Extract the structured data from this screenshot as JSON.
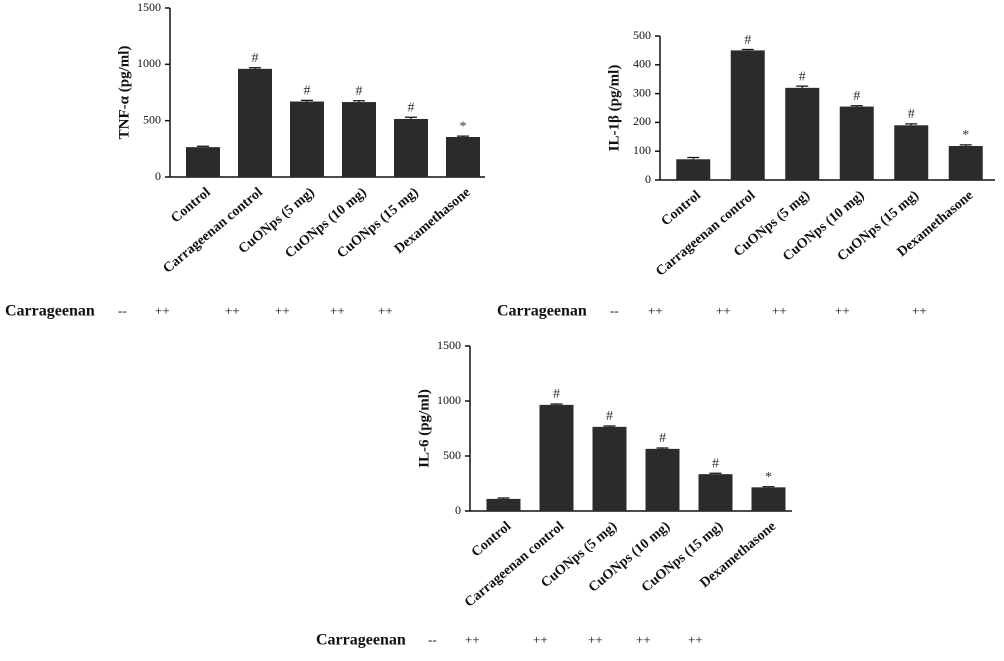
{
  "chart_data": [
    {
      "type": "bar",
      "ylabel": "TNF-α (pg/ml)",
      "categories": [
        "Control",
        "Carrageenan control",
        "CuONps (5 mg)",
        "CuONps (10 mg)",
        "CuONps (15 mg)",
        "Dexamethasone"
      ],
      "values": [
        265,
        960,
        670,
        665,
        515,
        355
      ],
      "errors": [
        8,
        10,
        10,
        12,
        15,
        8
      ],
      "annotations": [
        null,
        "#",
        "#",
        "#",
        "#",
        "*"
      ],
      "ylim": [
        0,
        1500
      ],
      "yticks": [
        0,
        500,
        1000,
        1500
      ],
      "color": "#2b2b2b",
      "row_label": "Carrageenan",
      "row_marks": [
        "--",
        "++",
        "++",
        "++",
        "++",
        "++"
      ]
    },
    {
      "type": "bar",
      "ylabel": "IL-1β (pg/ml)",
      "categories": [
        "Control",
        "Carrageenan control",
        "CuONps (5 mg)",
        "CuONps (10 mg)",
        "CuONps (15 mg)",
        "Dexamethasone"
      ],
      "values": [
        72,
        450,
        320,
        255,
        190,
        118
      ],
      "errors": [
        6,
        3,
        6,
        3,
        5,
        4
      ],
      "annotations": [
        null,
        "#",
        "#",
        "#",
        "#",
        "*"
      ],
      "ylim": [
        0,
        500
      ],
      "yticks": [
        0,
        100,
        200,
        300,
        400,
        500
      ],
      "color": "#2b2b2b",
      "row_label": "Carrageenan",
      "row_marks": [
        "--",
        "++",
        "++",
        "++",
        "++",
        "++"
      ]
    },
    {
      "type": "bar",
      "ylabel": "IL-6 (pg/ml)",
      "categories": [
        "Control",
        "Carrageenan control",
        "CuONps (5 mg)",
        "CuONps (10 mg)",
        "CuONps (15 mg)",
        "Dexamethasone"
      ],
      "values": [
        110,
        965,
        765,
        565,
        335,
        215
      ],
      "errors": [
        8,
        8,
        8,
        8,
        8,
        6
      ],
      "annotations": [
        null,
        "#",
        "#",
        "#",
        "#",
        "*"
      ],
      "ylim": [
        0,
        1500
      ],
      "yticks": [
        0,
        500,
        1000,
        1500
      ],
      "color": "#2b2b2b",
      "row_label": "Carrageenan",
      "row_marks": [
        "--",
        "++",
        "++",
        "++",
        "++",
        "++"
      ]
    }
  ]
}
